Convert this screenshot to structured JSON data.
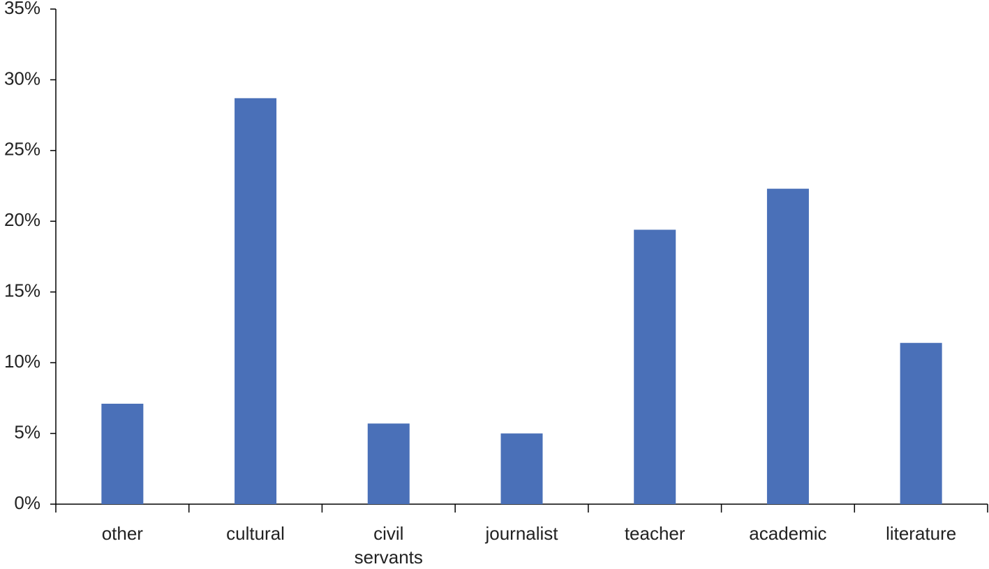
{
  "chart_data": {
    "type": "bar",
    "categories": [
      "other",
      "cultural",
      "civil servants",
      "journalist",
      "teacher",
      "academic",
      "literature"
    ],
    "values": [
      7.1,
      28.7,
      5.7,
      5.0,
      19.4,
      22.3,
      11.4
    ],
    "color": "#4a70b8",
    "ylim": [
      0,
      35
    ],
    "yticks": [
      {
        "value": 0,
        "label": "0%"
      },
      {
        "value": 5,
        "label": "5%"
      },
      {
        "value": 10,
        "label": "10%"
      },
      {
        "value": 15,
        "label": "15%"
      },
      {
        "value": 20,
        "label": "20%"
      },
      {
        "value": 25,
        "label": "25%"
      },
      {
        "value": 30,
        "label": "30%"
      },
      {
        "value": 35,
        "label": "35%"
      }
    ],
    "grid": false
  }
}
